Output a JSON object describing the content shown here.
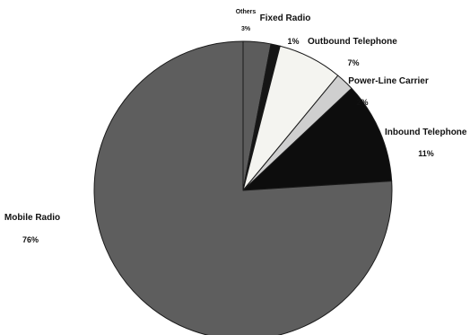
{
  "chart_data": {
    "type": "pie",
    "title": "",
    "start_angle_deg": 0,
    "direction": "clockwise",
    "slices": [
      {
        "name": "Others",
        "value": 3,
        "label_value": "3%",
        "color": "#5c5c5c"
      },
      {
        "name": "Fixed Radio",
        "value": 1,
        "label_value": "1%",
        "color": "#151515"
      },
      {
        "name": "Outbound Telephone",
        "value": 7,
        "label_value": "7%",
        "color": "#f4f4f0"
      },
      {
        "name": "Power-Line Carrier",
        "value": 2,
        "label_value": "2%",
        "color": "#cfcfcf"
      },
      {
        "name": "Inbound Telephone",
        "value": 11,
        "label_value": "11%",
        "color": "#0d0d0d"
      },
      {
        "name": "Mobile Radio",
        "value": 76,
        "label_value": "76%",
        "color": "#5e5e5e"
      }
    ]
  }
}
